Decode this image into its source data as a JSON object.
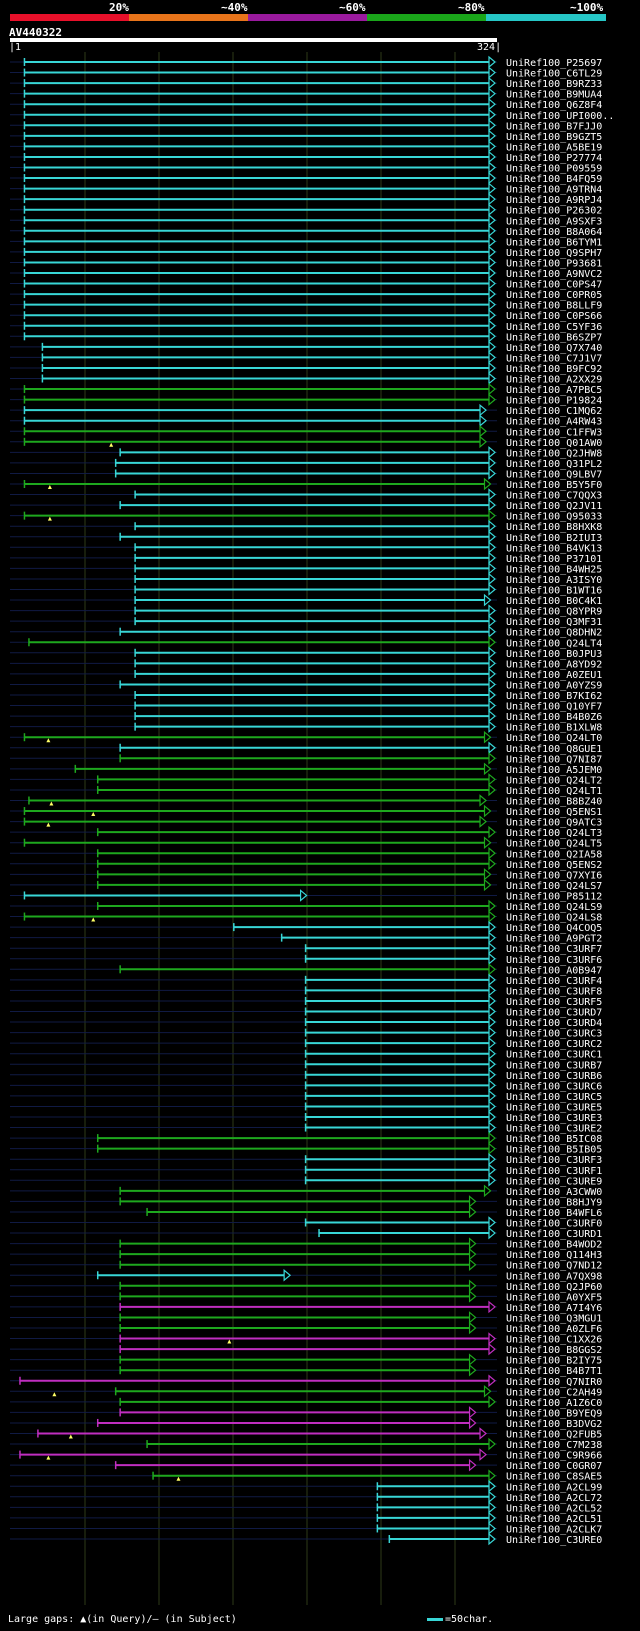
{
  "scale_labels": [
    "20%",
    "~40%",
    "~60%",
    "~80%",
    "~100%"
  ],
  "scale_colors": [
    "#e8102a",
    "#e8741a",
    "#9a1a9e",
    "#1aa61a",
    "#26c6c6"
  ],
  "query": {
    "name": "AV440322",
    "start": "1",
    "end": "324"
  },
  "legend": {
    "text": "Large gaps: ▲(in Query)/– (in Subject)",
    "scale": "=50char."
  },
  "hits": [
    {
      "id": "UniRef100_P25697",
      "s": 10,
      "e": 324,
      "c": "cyan"
    },
    {
      "id": "UniRef100_C6TL29",
      "s": 10,
      "e": 324,
      "c": "cyan"
    },
    {
      "id": "UniRef100_B9RZ33",
      "s": 10,
      "e": 324,
      "c": "cyan"
    },
    {
      "id": "UniRef100_B9MUA4",
      "s": 10,
      "e": 324,
      "c": "cyan"
    },
    {
      "id": "UniRef100_Q6Z8F4",
      "s": 10,
      "e": 324,
      "c": "cyan"
    },
    {
      "id": "UniRef100_UPI000..",
      "s": 10,
      "e": 324,
      "c": "cyan"
    },
    {
      "id": "UniRef100_B7FJJ0",
      "s": 10,
      "e": 324,
      "c": "cyan"
    },
    {
      "id": "UniRef100_B9GZT5",
      "s": 10,
      "e": 324,
      "c": "cyan"
    },
    {
      "id": "UniRef100_A5BE19",
      "s": 10,
      "e": 324,
      "c": "cyan"
    },
    {
      "id": "UniRef100_P27774",
      "s": 10,
      "e": 324,
      "c": "cyan"
    },
    {
      "id": "UniRef100_P09559",
      "s": 10,
      "e": 324,
      "c": "cyan"
    },
    {
      "id": "UniRef100_B4FQ59",
      "s": 10,
      "e": 324,
      "c": "cyan"
    },
    {
      "id": "UniRef100_A9TRN4",
      "s": 10,
      "e": 324,
      "c": "cyan"
    },
    {
      "id": "UniRef100_A9RPJ4",
      "s": 10,
      "e": 324,
      "c": "cyan"
    },
    {
      "id": "UniRef100_P26302",
      "s": 10,
      "e": 324,
      "c": "cyan"
    },
    {
      "id": "UniRef100_A9SXF3",
      "s": 10,
      "e": 324,
      "c": "cyan"
    },
    {
      "id": "UniRef100_B8A064",
      "s": 10,
      "e": 324,
      "c": "cyan"
    },
    {
      "id": "UniRef100_B6TYM1",
      "s": 10,
      "e": 324,
      "c": "cyan"
    },
    {
      "id": "UniRef100_Q9SPH7",
      "s": 10,
      "e": 324,
      "c": "cyan"
    },
    {
      "id": "UniRef100_P93681",
      "s": 10,
      "e": 324,
      "c": "cyan"
    },
    {
      "id": "UniRef100_A9NVC2",
      "s": 10,
      "e": 324,
      "c": "cyan"
    },
    {
      "id": "UniRef100_C0PS47",
      "s": 10,
      "e": 324,
      "c": "cyan"
    },
    {
      "id": "UniRef100_C0PR05",
      "s": 10,
      "e": 324,
      "c": "cyan"
    },
    {
      "id": "UniRef100_B8LLF9",
      "s": 10,
      "e": 324,
      "c": "cyan"
    },
    {
      "id": "UniRef100_C0PS66",
      "s": 10,
      "e": 324,
      "c": "cyan"
    },
    {
      "id": "UniRef100_C5YF36",
      "s": 10,
      "e": 324,
      "c": "cyan"
    },
    {
      "id": "UniRef100_B6SZP7",
      "s": 10,
      "e": 324,
      "c": "cyan"
    },
    {
      "id": "UniRef100_Q7X740",
      "s": 22,
      "e": 324,
      "c": "cyan"
    },
    {
      "id": "UniRef100_C7J1V7",
      "s": 22,
      "e": 324,
      "c": "cyan"
    },
    {
      "id": "UniRef100_B9FC92",
      "s": 22,
      "e": 324,
      "c": "cyan"
    },
    {
      "id": "UniRef100_A2XX29",
      "s": 22,
      "e": 324,
      "c": "cyan"
    },
    {
      "id": "UniRef100_A7PBC5",
      "s": 10,
      "e": 324,
      "c": "green"
    },
    {
      "id": "UniRef100_P19824",
      "s": 10,
      "e": 324,
      "c": "green"
    },
    {
      "id": "UniRef100_C1MQ62",
      "s": 10,
      "e": 318,
      "c": "cyan"
    },
    {
      "id": "UniRef100_A4RW43",
      "s": 10,
      "e": 318,
      "c": "cyan"
    },
    {
      "id": "UniRef100_C1FFW3",
      "s": 10,
      "e": 318,
      "c": "green"
    },
    {
      "id": "UniRef100_Q01AW0",
      "s": 10,
      "e": 318,
      "c": "green",
      "g": 68
    },
    {
      "id": "UniRef100_Q2JHW8",
      "s": 74,
      "e": 324,
      "c": "cyan"
    },
    {
      "id": "UniRef100_Q31PL2",
      "s": 71,
      "e": 324,
      "c": "cyan"
    },
    {
      "id": "UniRef100_Q9LBV7",
      "s": 71,
      "e": 324,
      "c": "cyan"
    },
    {
      "id": "UniRef100_B5Y5F0",
      "s": 10,
      "e": 321,
      "c": "green",
      "g": 27
    },
    {
      "id": "UniRef100_C7QQX3",
      "s": 84,
      "e": 324,
      "c": "cyan"
    },
    {
      "id": "UniRef100_Q2JV11",
      "s": 74,
      "e": 324,
      "c": "cyan"
    },
    {
      "id": "UniRef100_Q95033",
      "s": 10,
      "e": 324,
      "c": "green",
      "g": 27
    },
    {
      "id": "UniRef100_B8HXK8",
      "s": 84,
      "e": 324,
      "c": "cyan"
    },
    {
      "id": "UniRef100_B2IUI3",
      "s": 74,
      "e": 324,
      "c": "cyan"
    },
    {
      "id": "UniRef100_B4VK13",
      "s": 84,
      "e": 324,
      "c": "cyan"
    },
    {
      "id": "UniRef100_P37101",
      "s": 84,
      "e": 324,
      "c": "cyan"
    },
    {
      "id": "UniRef100_B4WH25",
      "s": 84,
      "e": 324,
      "c": "cyan"
    },
    {
      "id": "UniRef100_A3ISY0",
      "s": 84,
      "e": 324,
      "c": "cyan"
    },
    {
      "id": "UniRef100_B1WT16",
      "s": 84,
      "e": 324,
      "c": "cyan"
    },
    {
      "id": "UniRef100_B0C4K1",
      "s": 84,
      "e": 321,
      "c": "cyan"
    },
    {
      "id": "UniRef100_Q8YPR9",
      "s": 84,
      "e": 324,
      "c": "cyan"
    },
    {
      "id": "UniRef100_Q3MF31",
      "s": 84,
      "e": 324,
      "c": "cyan"
    },
    {
      "id": "UniRef100_Q8DHN2",
      "s": 74,
      "e": 324,
      "c": "cyan"
    },
    {
      "id": "UniRef100_Q24LT4",
      "s": 13,
      "e": 324,
      "c": "green"
    },
    {
      "id": "UniRef100_B0JPU3",
      "s": 84,
      "e": 324,
      "c": "cyan"
    },
    {
      "id": "UniRef100_A8YD92",
      "s": 84,
      "e": 324,
      "c": "cyan"
    },
    {
      "id": "UniRef100_A0ZEU1",
      "s": 84,
      "e": 324,
      "c": "cyan"
    },
    {
      "id": "UniRef100_A0YZS9",
      "s": 74,
      "e": 324,
      "c": "cyan"
    },
    {
      "id": "UniRef100_B7KI62",
      "s": 84,
      "e": 324,
      "c": "cyan"
    },
    {
      "id": "UniRef100_Q10YF7",
      "s": 84,
      "e": 324,
      "c": "cyan"
    },
    {
      "id": "UniRef100_B4B0Z6",
      "s": 84,
      "e": 324,
      "c": "cyan"
    },
    {
      "id": "UniRef100_B1XLW8",
      "s": 84,
      "e": 324,
      "c": "cyan"
    },
    {
      "id": "UniRef100_Q24LT0",
      "s": 10,
      "e": 321,
      "c": "green",
      "g": 26
    },
    {
      "id": "UniRef100_Q8GUE1",
      "s": 74,
      "e": 324,
      "c": "cyan"
    },
    {
      "id": "UniRef100_Q7NI87",
      "s": 74,
      "e": 324,
      "c": "green"
    },
    {
      "id": "UniRef100_A5JEM0",
      "s": 44,
      "e": 321,
      "c": "green"
    },
    {
      "id": "UniRef100_Q24LT2",
      "s": 59,
      "e": 324,
      "c": "green"
    },
    {
      "id": "UniRef100_Q24LT1",
      "s": 59,
      "e": 324,
      "c": "green"
    },
    {
      "id": "UniRef100_B8BZ40",
      "s": 13,
      "e": 318,
      "c": "green",
      "g": 28
    },
    {
      "id": "UniRef100_Q5ENS1",
      "s": 10,
      "e": 321,
      "c": "green",
      "g": 56
    },
    {
      "id": "UniRef100_Q9ATC3",
      "s": 10,
      "e": 318,
      "c": "green",
      "g": 26
    },
    {
      "id": "UniRef100_Q24LT3",
      "s": 59,
      "e": 324,
      "c": "green"
    },
    {
      "id": "UniRef100_Q24LT5",
      "s": 10,
      "e": 321,
      "c": "green"
    },
    {
      "id": "UniRef100_Q2IA58",
      "s": 59,
      "e": 324,
      "c": "green"
    },
    {
      "id": "UniRef100_Q5ENS2",
      "s": 59,
      "e": 324,
      "c": "green"
    },
    {
      "id": "UniRef100_Q7XYI6",
      "s": 59,
      "e": 321,
      "c": "green"
    },
    {
      "id": "UniRef100_Q24LS7",
      "s": 59,
      "e": 321,
      "c": "green"
    },
    {
      "id": "UniRef100_P85112",
      "s": 10,
      "e": 198,
      "c": "cyan"
    },
    {
      "id": "UniRef100_Q24LS9",
      "s": 59,
      "e": 324,
      "c": "green"
    },
    {
      "id": "UniRef100_Q24LS8",
      "s": 10,
      "e": 324,
      "c": "green",
      "g": 56
    },
    {
      "id": "UniRef100_Q4COQ5",
      "s": 150,
      "e": 324,
      "c": "cyan"
    },
    {
      "id": "UniRef100_A9PGT2",
      "s": 182,
      "e": 324,
      "c": "cyan"
    },
    {
      "id": "UniRef100_C3URF7",
      "s": 198,
      "e": 324,
      "c": "cyan"
    },
    {
      "id": "UniRef100_C3URF6",
      "s": 198,
      "e": 324,
      "c": "cyan"
    },
    {
      "id": "UniRef100_A0B947",
      "s": 74,
      "e": 324,
      "c": "green"
    },
    {
      "id": "UniRef100_C3URF4",
      "s": 198,
      "e": 324,
      "c": "cyan"
    },
    {
      "id": "UniRef100_C3URF8",
      "s": 198,
      "e": 324,
      "c": "cyan"
    },
    {
      "id": "UniRef100_C3URF5",
      "s": 198,
      "e": 324,
      "c": "cyan"
    },
    {
      "id": "UniRef100_C3URD7",
      "s": 198,
      "e": 324,
      "c": "cyan"
    },
    {
      "id": "UniRef100_C3URD4",
      "s": 198,
      "e": 324,
      "c": "cyan"
    },
    {
      "id": "UniRef100_C3URC3",
      "s": 198,
      "e": 324,
      "c": "cyan"
    },
    {
      "id": "UniRef100_C3URC2",
      "s": 198,
      "e": 324,
      "c": "cyan"
    },
    {
      "id": "UniRef100_C3URC1",
      "s": 198,
      "e": 324,
      "c": "cyan"
    },
    {
      "id": "UniRef100_C3URB7",
      "s": 198,
      "e": 324,
      "c": "cyan"
    },
    {
      "id": "UniRef100_C3URB6",
      "s": 198,
      "e": 324,
      "c": "cyan"
    },
    {
      "id": "UniRef100_C3URC6",
      "s": 198,
      "e": 324,
      "c": "cyan"
    },
    {
      "id": "UniRef100_C3URC5",
      "s": 198,
      "e": 324,
      "c": "cyan"
    },
    {
      "id": "UniRef100_C3URE5",
      "s": 198,
      "e": 324,
      "c": "cyan"
    },
    {
      "id": "UniRef100_C3URE3",
      "s": 198,
      "e": 324,
      "c": "cyan"
    },
    {
      "id": "UniRef100_C3URE2",
      "s": 198,
      "e": 324,
      "c": "cyan"
    },
    {
      "id": "UniRef100_B5IC08",
      "s": 59,
      "e": 324,
      "c": "green"
    },
    {
      "id": "UniRef100_B5IB05",
      "s": 59,
      "e": 324,
      "c": "green"
    },
    {
      "id": "UniRef100_C3URF3",
      "s": 198,
      "e": 324,
      "c": "cyan"
    },
    {
      "id": "UniRef100_C3URF1",
      "s": 198,
      "e": 324,
      "c": "cyan"
    },
    {
      "id": "UniRef100_C3URE9",
      "s": 198,
      "e": 324,
      "c": "cyan"
    },
    {
      "id": "UniRef100_A3CWW0",
      "s": 74,
      "e": 321,
      "c": "green"
    },
    {
      "id": "UniRef100_B8HJY9",
      "s": 74,
      "e": 311,
      "c": "green"
    },
    {
      "id": "UniRef100_B4WFL6",
      "s": 92,
      "e": 311,
      "c": "green"
    },
    {
      "id": "UniRef100_C3URF0",
      "s": 198,
      "e": 324,
      "c": "cyan"
    },
    {
      "id": "UniRef100_C3URD1",
      "s": 207,
      "e": 324,
      "c": "cyan"
    },
    {
      "id": "UniRef100_B4WOD2",
      "s": 74,
      "e": 311,
      "c": "green"
    },
    {
      "id": "UniRef100_Q114H3",
      "s": 74,
      "e": 311,
      "c": "green"
    },
    {
      "id": "UniRef100_Q7ND12",
      "s": 74,
      "e": 311,
      "c": "green"
    },
    {
      "id": "UniRef100_A7QX98",
      "s": 59,
      "e": 187,
      "c": "cyan"
    },
    {
      "id": "UniRef100_Q2JP60",
      "s": 74,
      "e": 311,
      "c": "green"
    },
    {
      "id": "UniRef100_A0YXF5",
      "s": 74,
      "e": 311,
      "c": "green"
    },
    {
      "id": "UniRef100_A7I4Y6",
      "s": 74,
      "e": 324,
      "c": "magenta"
    },
    {
      "id": "UniRef100_Q3MGU1",
      "s": 74,
      "e": 311,
      "c": "green"
    },
    {
      "id": "UniRef100_A0ZLF6",
      "s": 74,
      "e": 311,
      "c": "green"
    },
    {
      "id": "UniRef100_C1XX26",
      "s": 74,
      "e": 324,
      "c": "magenta",
      "g": 147
    },
    {
      "id": "UniRef100_B8GGS2",
      "s": 74,
      "e": 324,
      "c": "magenta"
    },
    {
      "id": "UniRef100_B2IY75",
      "s": 74,
      "e": 311,
      "c": "green"
    },
    {
      "id": "UniRef100_B4B7T1",
      "s": 74,
      "e": 311,
      "c": "green"
    },
    {
      "id": "UniRef100_Q7NIR0",
      "s": 7,
      "e": 324,
      "c": "magenta"
    },
    {
      "id": "UniRef100_C2AH49",
      "s": 71,
      "e": 321,
      "c": "green",
      "g": 30
    },
    {
      "id": "UniRef100_A1Z6C0",
      "s": 74,
      "e": 324,
      "c": "green"
    },
    {
      "id": "UniRef100_B9YEQ9",
      "s": 74,
      "e": 311,
      "c": "magenta"
    },
    {
      "id": "UniRef100_B3DVG2",
      "s": 59,
      "e": 311,
      "c": "magenta"
    },
    {
      "id": "UniRef100_Q2FUB5",
      "s": 19,
      "e": 318,
      "c": "magenta",
      "g": 41
    },
    {
      "id": "UniRef100_C7M238",
      "s": 92,
      "e": 324,
      "c": "green"
    },
    {
      "id": "UniRef100_C9R966",
      "s": 7,
      "e": 318,
      "c": "magenta",
      "g": 26
    },
    {
      "id": "UniRef100_C0GR07",
      "s": 71,
      "e": 311,
      "c": "magenta"
    },
    {
      "id": "UniRef100_C8SAE5",
      "s": 96,
      "e": 324,
      "c": "green",
      "g": 113
    },
    {
      "id": "UniRef100_A2CL99",
      "s": 246,
      "e": 324,
      "c": "cyan"
    },
    {
      "id": "UniRef100_A2CL72",
      "s": 246,
      "e": 324,
      "c": "cyan"
    },
    {
      "id": "UniRef100_A2CL52",
      "s": 246,
      "e": 324,
      "c": "cyan"
    },
    {
      "id": "UniRef100_A2CL51",
      "s": 246,
      "e": 324,
      "c": "cyan"
    },
    {
      "id": "UniRef100_A2CLK7",
      "s": 246,
      "e": 324,
      "c": "cyan"
    },
    {
      "id": "UniRef100_C3URE0",
      "s": 254,
      "e": 324,
      "c": "cyan"
    }
  ]
}
